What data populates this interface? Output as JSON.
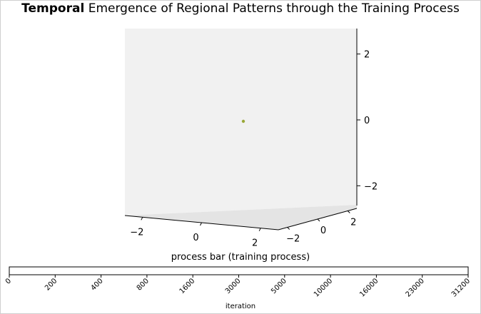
{
  "title": {
    "bold": "Temporal",
    "rest": " Emergence of Regional Patterns through the Training Process"
  },
  "chart_data": [
    {
      "type": "scatter",
      "projection": "3d",
      "x_ticks": [
        "−2",
        "0",
        "2"
      ],
      "y_ticks": [
        "−2",
        "0",
        "2"
      ],
      "z_ticks": [
        "−2",
        "0",
        "2"
      ],
      "xlim": [
        -2.6,
        2.6
      ],
      "ylim": [
        -2.6,
        2.6
      ],
      "zlim": [
        -2.6,
        2.6
      ],
      "points": [
        {
          "x": 0,
          "y": 0,
          "z": 0
        }
      ],
      "point_color": "#9aa838",
      "pane_color": "#f2f2f2",
      "grid": false
    },
    {
      "type": "bar",
      "orientation": "horizontal",
      "title": "process bar (training process)",
      "xlabel": "iteration",
      "categories": [
        "0",
        "200",
        "400",
        "800",
        "1600",
        "3000",
        "5000",
        "10000",
        "16000",
        "23000",
        "31200"
      ],
      "progress": 0,
      "bar_outline_color": "#000000"
    }
  ]
}
